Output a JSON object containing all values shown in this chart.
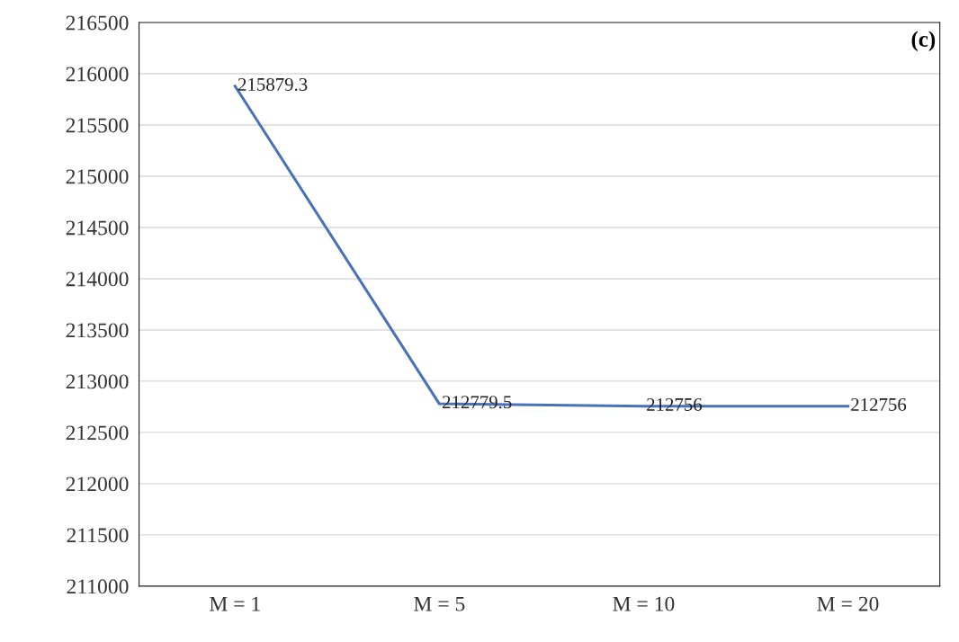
{
  "chart_data": {
    "type": "line",
    "categories": [
      "M = 1",
      "M = 5",
      "M = 10",
      "M = 20"
    ],
    "series": [
      {
        "color": "#4a72b8",
        "values": [
          215879.3,
          212779.5,
          212756,
          212756
        ]
      }
    ],
    "ylim": [
      211000,
      216500
    ],
    "yticks": [
      211000,
      211500,
      212000,
      212500,
      213000,
      213500,
      214000,
      214500,
      215000,
      215500,
      216000,
      216500
    ],
    "grid": "y",
    "legend": false,
    "marker": "none",
    "line_style": "solid",
    "data_labels": true,
    "annotations": [
      "(c)"
    ]
  }
}
